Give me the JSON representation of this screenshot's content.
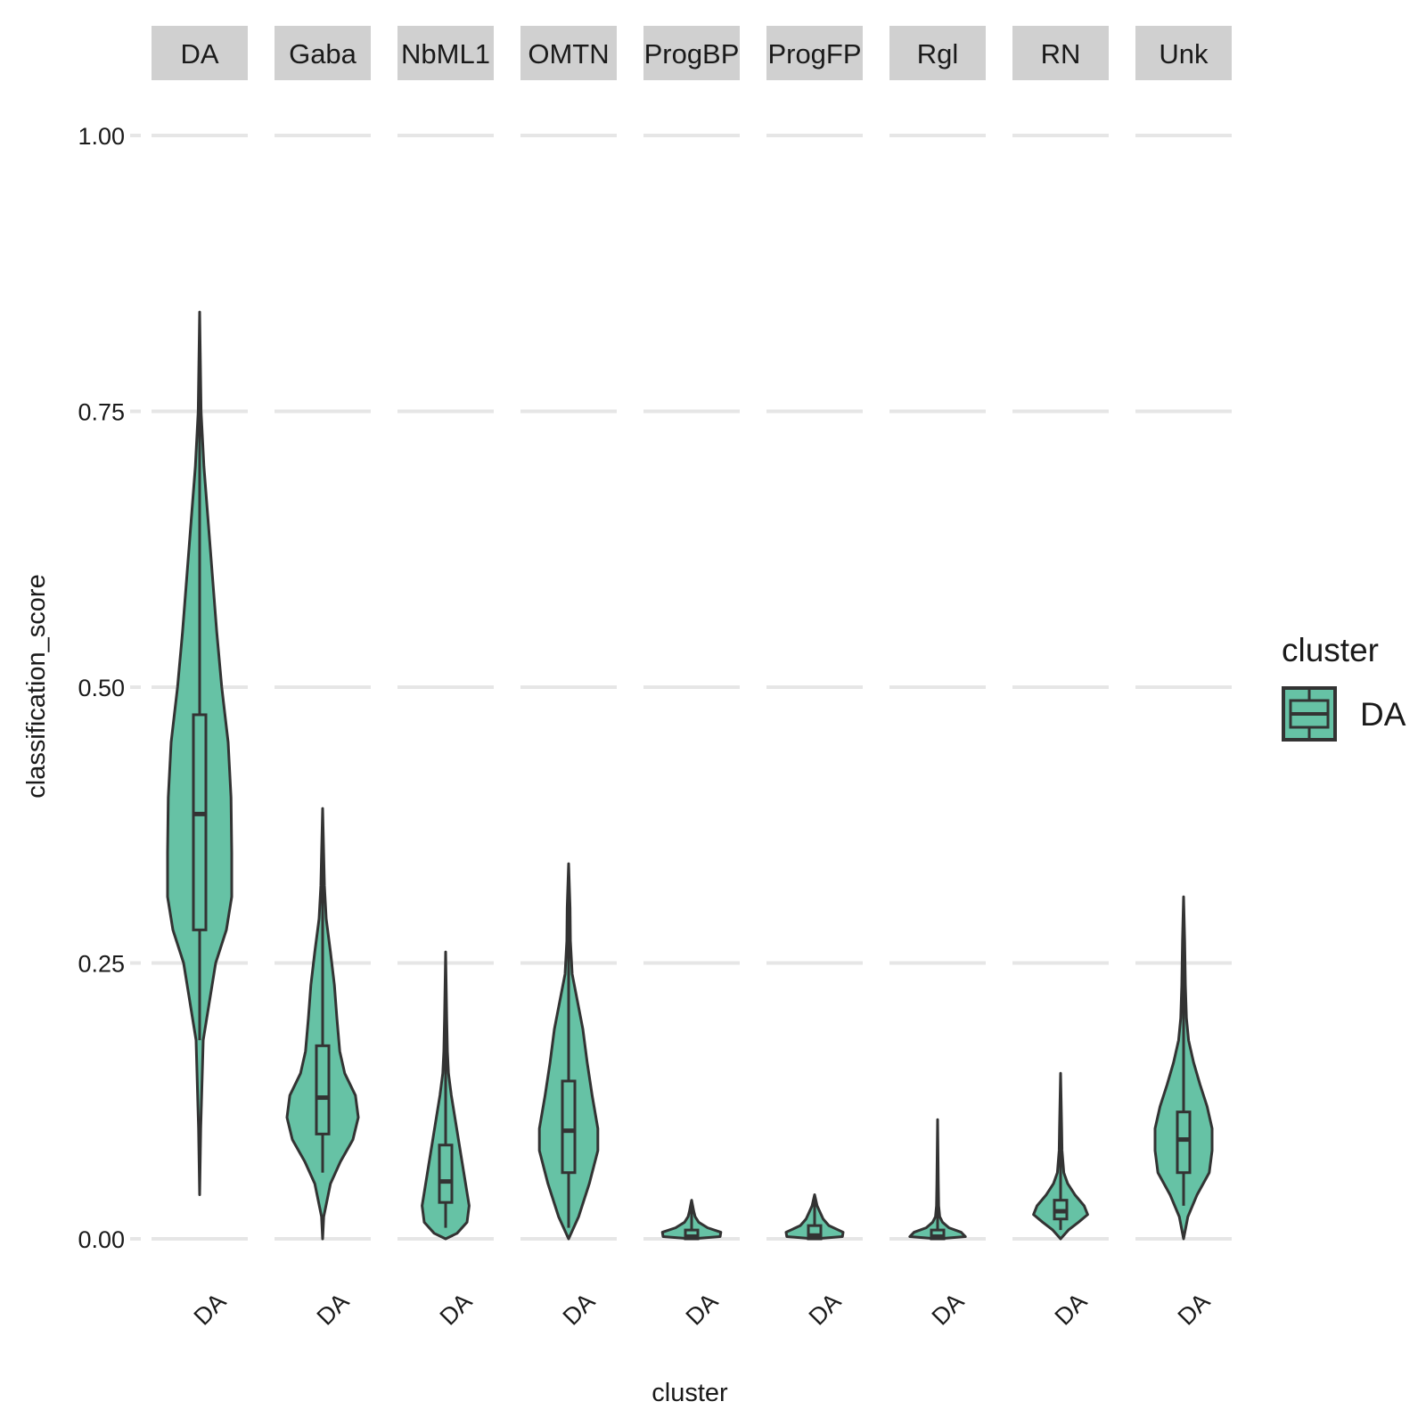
{
  "chart_data": {
    "type": "violin",
    "ylabel": "classification_score",
    "xlabel": "cluster",
    "ylim": [
      0,
      1
    ],
    "yticks": [
      "0.00",
      "0.25",
      "0.50",
      "0.75",
      "1.00"
    ],
    "grid": "horizontal major",
    "legend": {
      "title": "cluster",
      "entries": [
        "DA"
      ],
      "position": "right"
    },
    "fill_color": "#66c2a5",
    "line_color": "#333333",
    "x_category": "DA",
    "facets": [
      {
        "panel": "DA",
        "min": 0.04,
        "q1": 0.28,
        "median": 0.385,
        "q3": 0.475,
        "whisker_low": 0.18,
        "whisker_high": 0.7,
        "max": 0.84,
        "profile": [
          [
            0.04,
            0.0
          ],
          [
            0.1,
            0.03
          ],
          [
            0.18,
            0.1
          ],
          [
            0.25,
            0.45
          ],
          [
            0.28,
            0.75
          ],
          [
            0.31,
            0.9
          ],
          [
            0.35,
            0.9
          ],
          [
            0.4,
            0.88
          ],
          [
            0.45,
            0.8
          ],
          [
            0.5,
            0.62
          ],
          [
            0.55,
            0.48
          ],
          [
            0.6,
            0.36
          ],
          [
            0.65,
            0.24
          ],
          [
            0.7,
            0.12
          ],
          [
            0.75,
            0.04
          ],
          [
            0.84,
            0.0
          ]
        ]
      },
      {
        "panel": "Gaba",
        "min": 0.0,
        "q1": 0.095,
        "median": 0.128,
        "q3": 0.175,
        "whisker_low": 0.06,
        "whisker_high": 0.29,
        "max": 0.39,
        "profile": [
          [
            0.0,
            0.0
          ],
          [
            0.02,
            0.03
          ],
          [
            0.05,
            0.22
          ],
          [
            0.07,
            0.5
          ],
          [
            0.09,
            0.85
          ],
          [
            0.11,
            1.0
          ],
          [
            0.13,
            0.92
          ],
          [
            0.15,
            0.62
          ],
          [
            0.17,
            0.48
          ],
          [
            0.2,
            0.4
          ],
          [
            0.23,
            0.33
          ],
          [
            0.26,
            0.22
          ],
          [
            0.29,
            0.1
          ],
          [
            0.32,
            0.05
          ],
          [
            0.39,
            0.0
          ]
        ]
      },
      {
        "panel": "NbML1",
        "min": 0.0,
        "q1": 0.033,
        "median": 0.052,
        "q3": 0.085,
        "whisker_low": 0.01,
        "whisker_high": 0.22,
        "max": 0.26,
        "profile": [
          [
            0.0,
            0.0
          ],
          [
            0.005,
            0.32
          ],
          [
            0.015,
            0.6
          ],
          [
            0.03,
            0.66
          ],
          [
            0.05,
            0.56
          ],
          [
            0.07,
            0.46
          ],
          [
            0.09,
            0.36
          ],
          [
            0.11,
            0.26
          ],
          [
            0.13,
            0.16
          ],
          [
            0.15,
            0.08
          ],
          [
            0.17,
            0.05
          ],
          [
            0.2,
            0.03
          ],
          [
            0.26,
            0.0
          ]
        ]
      },
      {
        "panel": "OMTN",
        "min": 0.0,
        "q1": 0.06,
        "median": 0.098,
        "q3": 0.143,
        "whisker_low": 0.01,
        "whisker_high": 0.26,
        "max": 0.34,
        "profile": [
          [
            0.0,
            0.0
          ],
          [
            0.02,
            0.28
          ],
          [
            0.05,
            0.58
          ],
          [
            0.08,
            0.82
          ],
          [
            0.1,
            0.82
          ],
          [
            0.13,
            0.66
          ],
          [
            0.16,
            0.52
          ],
          [
            0.19,
            0.4
          ],
          [
            0.22,
            0.22
          ],
          [
            0.24,
            0.1
          ],
          [
            0.27,
            0.05
          ],
          [
            0.3,
            0.04
          ],
          [
            0.34,
            0.0
          ]
        ]
      },
      {
        "panel": "ProgBP",
        "min": 0.0,
        "q1": 0.0,
        "median": 0.002,
        "q3": 0.008,
        "whisker_low": 0.0,
        "whisker_high": 0.02,
        "max": 0.035,
        "profile": [
          [
            0.0,
            0.0
          ],
          [
            0.002,
            0.8
          ],
          [
            0.006,
            0.82
          ],
          [
            0.01,
            0.45
          ],
          [
            0.015,
            0.2
          ],
          [
            0.02,
            0.1
          ],
          [
            0.025,
            0.06
          ],
          [
            0.035,
            0.0
          ]
        ]
      },
      {
        "panel": "ProgFP",
        "min": 0.0,
        "q1": 0.0,
        "median": 0.003,
        "q3": 0.012,
        "whisker_low": 0.0,
        "whisker_high": 0.03,
        "max": 0.04,
        "profile": [
          [
            0.0,
            0.0
          ],
          [
            0.002,
            0.78
          ],
          [
            0.006,
            0.8
          ],
          [
            0.012,
            0.4
          ],
          [
            0.018,
            0.24
          ],
          [
            0.025,
            0.14
          ],
          [
            0.03,
            0.07
          ],
          [
            0.04,
            0.0
          ]
        ]
      },
      {
        "panel": "Rgl",
        "min": 0.0,
        "q1": 0.0,
        "median": 0.002,
        "q3": 0.008,
        "whisker_low": 0.0,
        "whisker_high": 0.03,
        "max": 0.108,
        "profile": [
          [
            0.0,
            0.0
          ],
          [
            0.002,
            0.78
          ],
          [
            0.006,
            0.66
          ],
          [
            0.01,
            0.32
          ],
          [
            0.015,
            0.14
          ],
          [
            0.02,
            0.06
          ],
          [
            0.03,
            0.03
          ],
          [
            0.05,
            0.02
          ],
          [
            0.108,
            0.0
          ]
        ]
      },
      {
        "panel": "RN",
        "min": 0.0,
        "q1": 0.018,
        "median": 0.025,
        "q3": 0.035,
        "whisker_low": 0.008,
        "whisker_high": 0.06,
        "max": 0.15,
        "profile": [
          [
            0.0,
            0.0
          ],
          [
            0.008,
            0.22
          ],
          [
            0.015,
            0.5
          ],
          [
            0.022,
            0.76
          ],
          [
            0.03,
            0.66
          ],
          [
            0.04,
            0.4
          ],
          [
            0.05,
            0.2
          ],
          [
            0.06,
            0.09
          ],
          [
            0.08,
            0.04
          ],
          [
            0.1,
            0.03
          ],
          [
            0.15,
            0.0
          ]
        ]
      },
      {
        "panel": "Unk",
        "min": 0.0,
        "q1": 0.06,
        "median": 0.09,
        "q3": 0.115,
        "whisker_low": 0.03,
        "whisker_high": 0.19,
        "max": 0.31,
        "profile": [
          [
            0.0,
            0.0
          ],
          [
            0.02,
            0.12
          ],
          [
            0.04,
            0.38
          ],
          [
            0.06,
            0.72
          ],
          [
            0.08,
            0.8
          ],
          [
            0.1,
            0.8
          ],
          [
            0.12,
            0.66
          ],
          [
            0.14,
            0.46
          ],
          [
            0.16,
            0.28
          ],
          [
            0.18,
            0.14
          ],
          [
            0.2,
            0.08
          ],
          [
            0.23,
            0.05
          ],
          [
            0.27,
            0.03
          ],
          [
            0.31,
            0.0
          ]
        ]
      }
    ]
  }
}
